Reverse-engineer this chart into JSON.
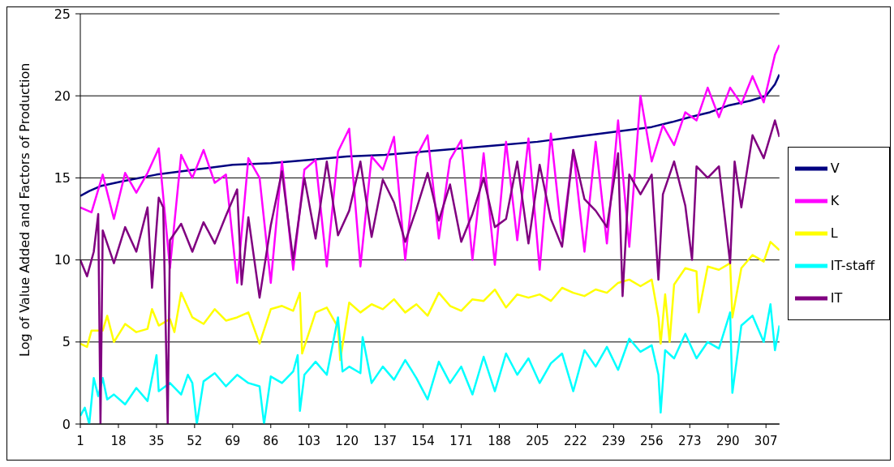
{
  "chart_data": {
    "type": "line",
    "ylabel": "Log of Value Added and Factors of Production",
    "xlim": [
      1,
      313
    ],
    "xticks": [
      1,
      18,
      35,
      52,
      69,
      86,
      103,
      120,
      137,
      154,
      171,
      188,
      205,
      222,
      239,
      256,
      273,
      290,
      307
    ],
    "ylim": [
      0,
      25
    ],
    "yticks": [
      0,
      5,
      10,
      15,
      20,
      25
    ],
    "grid": "y",
    "legend": "right",
    "marker": "none",
    "line_style": "solid",
    "series": [
      {
        "name": "V",
        "color": "#000080",
        "x": [
          1,
          5,
          10,
          20,
          35,
          52,
          69,
          86,
          103,
          120,
          137,
          154,
          171,
          188,
          205,
          222,
          239,
          256,
          265,
          273,
          282,
          290,
          300,
          307,
          311,
          313
        ],
        "values": [
          13.9,
          14.2,
          14.5,
          14.8,
          15.2,
          15.5,
          15.8,
          15.9,
          16.1,
          16.3,
          16.4,
          16.6,
          16.8,
          17.0,
          17.2,
          17.5,
          17.8,
          18.1,
          18.4,
          18.7,
          19.0,
          19.4,
          19.7,
          20.0,
          20.7,
          21.3
        ]
      },
      {
        "name": "K",
        "color": "#ff00ff",
        "x": [
          1,
          6,
          11,
          16,
          21,
          26,
          31,
          36,
          41,
          46,
          51,
          56,
          61,
          66,
          71,
          76,
          81,
          86,
          91,
          96,
          101,
          106,
          111,
          116,
          121,
          126,
          131,
          136,
          141,
          146,
          151,
          156,
          161,
          166,
          171,
          176,
          181,
          186,
          191,
          196,
          201,
          206,
          211,
          216,
          221,
          226,
          231,
          236,
          241,
          246,
          251,
          256,
          261,
          266,
          271,
          276,
          281,
          286,
          291,
          296,
          301,
          306,
          311,
          313
        ],
        "values": [
          13.2,
          12.9,
          15.2,
          12.5,
          15.3,
          14.1,
          15.3,
          16.8,
          9.5,
          16.4,
          15.0,
          16.7,
          14.7,
          15.2,
          8.6,
          16.2,
          15.0,
          8.6,
          16.0,
          9.4,
          15.5,
          16.1,
          9.6,
          16.6,
          18.0,
          9.6,
          16.3,
          15.5,
          17.5,
          10.0,
          16.3,
          17.6,
          11.3,
          16.1,
          17.3,
          10.0,
          16.5,
          9.7,
          17.2,
          11.2,
          17.4,
          9.4,
          17.7,
          11.3,
          16.7,
          10.5,
          17.2,
          11.0,
          18.5,
          10.8,
          20.0,
          16.0,
          18.2,
          17.0,
          19.0,
          18.5,
          20.5,
          18.7,
          20.5,
          19.5,
          21.2,
          19.6,
          22.5,
          23.1
        ]
      },
      {
        "name": "L",
        "color": "#ffff00",
        "x": [
          1,
          4,
          6,
          11,
          13,
          16,
          21,
          26,
          31,
          33,
          36,
          41,
          43,
          46,
          51,
          56,
          61,
          66,
          71,
          76,
          81,
          86,
          91,
          96,
          99,
          100,
          106,
          111,
          116,
          117,
          121,
          126,
          131,
          136,
          141,
          146,
          151,
          156,
          161,
          166,
          171,
          176,
          181,
          186,
          191,
          196,
          201,
          206,
          211,
          216,
          221,
          226,
          231,
          236,
          241,
          246,
          251,
          256,
          259,
          260,
          262,
          264,
          266,
          271,
          276,
          277,
          281,
          286,
          291,
          292,
          296,
          301,
          306,
          309,
          313
        ],
        "values": [
          4.9,
          4.7,
          5.7,
          5.7,
          6.6,
          5.0,
          6.1,
          5.6,
          5.8,
          7.0,
          6.0,
          6.4,
          5.6,
          8.0,
          6.5,
          6.1,
          7.0,
          6.3,
          6.5,
          6.8,
          4.9,
          7.0,
          7.2,
          6.9,
          8.0,
          4.3,
          6.8,
          7.1,
          5.9,
          3.9,
          7.4,
          6.8,
          7.3,
          7.0,
          7.6,
          6.8,
          7.3,
          6.6,
          8.0,
          7.2,
          6.9,
          7.6,
          7.5,
          8.2,
          7.1,
          7.9,
          7.7,
          7.9,
          7.5,
          8.3,
          8.0,
          7.8,
          8.2,
          8.0,
          8.6,
          8.8,
          8.4,
          8.8,
          6.5,
          4.9,
          7.9,
          5.0,
          8.5,
          9.5,
          9.3,
          6.8,
          9.6,
          9.4,
          9.8,
          6.5,
          9.5,
          10.3,
          9.9,
          11.1,
          10.6
        ]
      },
      {
        "name": "IT-staff",
        "color": "#00ffff",
        "x": [
          1,
          3,
          5,
          7,
          9,
          11,
          13,
          16,
          21,
          26,
          31,
          35,
          36,
          41,
          46,
          49,
          51,
          53,
          56,
          61,
          66,
          71,
          76,
          81,
          83,
          86,
          91,
          96,
          98,
          99,
          101,
          106,
          111,
          116,
          118,
          121,
          126,
          127,
          131,
          136,
          141,
          146,
          151,
          156,
          161,
          166,
          171,
          176,
          181,
          186,
          191,
          196,
          201,
          206,
          211,
          216,
          221,
          226,
          231,
          236,
          241,
          246,
          251,
          256,
          259,
          260,
          262,
          266,
          271,
          276,
          281,
          286,
          291,
          292,
          296,
          301,
          306,
          309,
          311,
          313
        ],
        "values": [
          0.5,
          1.0,
          0.0,
          2.8,
          1.7,
          2.8,
          1.5,
          1.8,
          1.2,
          2.2,
          1.4,
          4.2,
          2.0,
          2.5,
          1.8,
          3.0,
          2.5,
          0.0,
          2.6,
          3.1,
          2.3,
          3.0,
          2.5,
          2.3,
          0.0,
          2.9,
          2.5,
          3.2,
          4.2,
          0.8,
          3.0,
          3.8,
          3.0,
          6.5,
          3.2,
          3.5,
          3.1,
          5.3,
          2.5,
          3.5,
          2.7,
          3.9,
          2.8,
          1.5,
          3.8,
          2.5,
          3.5,
          1.8,
          4.1,
          2.0,
          4.3,
          3.0,
          4.0,
          2.5,
          3.7,
          4.3,
          2.0,
          4.5,
          3.5,
          4.7,
          3.3,
          5.2,
          4.4,
          4.8,
          3.0,
          0.7,
          4.5,
          4.0,
          5.5,
          4.0,
          5.0,
          4.6,
          6.8,
          1.9,
          6.0,
          6.6,
          5.0,
          7.3,
          4.5,
          6.0
        ]
      },
      {
        "name": "IT",
        "color": "#800080",
        "x": [
          1,
          4,
          7,
          9,
          10,
          11,
          16,
          21,
          26,
          31,
          33,
          36,
          38,
          40,
          41,
          46,
          51,
          56,
          61,
          66,
          71,
          73,
          76,
          81,
          86,
          91,
          96,
          101,
          106,
          111,
          116,
          121,
          126,
          131,
          136,
          141,
          146,
          151,
          156,
          161,
          166,
          171,
          176,
          181,
          186,
          191,
          196,
          201,
          206,
          211,
          216,
          221,
          226,
          231,
          236,
          241,
          243,
          246,
          251,
          256,
          259,
          261,
          266,
          271,
          274,
          276,
          281,
          286,
          291,
          293,
          296,
          301,
          306,
          311,
          313
        ],
        "values": [
          10.0,
          9.0,
          10.5,
          12.8,
          0.0,
          11.8,
          9.8,
          12.0,
          10.5,
          13.2,
          8.3,
          13.8,
          13.2,
          0.0,
          11.2,
          12.2,
          10.5,
          12.3,
          11.0,
          12.7,
          14.3,
          8.5,
          12.6,
          7.7,
          12.1,
          15.4,
          10.0,
          15.0,
          11.3,
          16.0,
          11.5,
          13.0,
          16.0,
          11.4,
          14.9,
          13.5,
          11.1,
          13.1,
          15.3,
          12.4,
          14.6,
          11.1,
          12.8,
          15.0,
          12.0,
          12.5,
          16.0,
          11.0,
          15.8,
          12.5,
          10.8,
          16.7,
          13.7,
          13.0,
          12.0,
          16.5,
          7.8,
          15.2,
          14.0,
          15.2,
          8.8,
          14.0,
          16.0,
          13.3,
          10.0,
          15.7,
          15.0,
          15.7,
          9.8,
          16.0,
          13.2,
          17.6,
          16.2,
          18.5,
          17.5
        ]
      }
    ]
  }
}
